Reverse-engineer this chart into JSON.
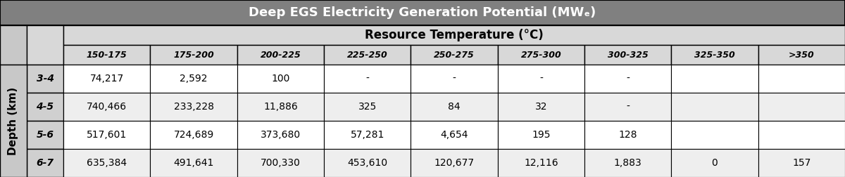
{
  "title": "Deep EGS Electricity Generation Potential (MWₑ)",
  "col_header_main": "Resource Temperature (°C)",
  "col_headers": [
    "150-175",
    "175-200",
    "200-225",
    "225-250",
    "250-275",
    "275-300",
    "300-325",
    "325-350",
    ">350"
  ],
  "row_label_main": "Depth (km)",
  "row_labels": [
    "3-4",
    "4-5",
    "5-6",
    "6-7"
  ],
  "data": [
    [
      "74,217",
      "2,592",
      "100",
      "-",
      "-",
      "-",
      "-",
      "",
      ""
    ],
    [
      "740,466",
      "233,228",
      "11,886",
      "325",
      "84",
      "32",
      "-",
      "",
      ""
    ],
    [
      "517,601",
      "724,689",
      "373,680",
      "57,281",
      "4,654",
      "195",
      "128",
      "",
      ""
    ],
    [
      "635,384",
      "491,641",
      "700,330",
      "453,610",
      "120,677",
      "12,116",
      "1,883",
      "0",
      "157"
    ]
  ],
  "title_bg": "#808080",
  "title_fg": "#ffffff",
  "header_bg": "#c8c8c8",
  "subheader_bg": "#d8d8d8",
  "row_bg_white": "#ffffff",
  "row_bg_gray": "#eeeeee",
  "border_color": "#000000",
  "depth_label_bg": "#c8c8c8",
  "row_label_bg": "#d0d0d0"
}
